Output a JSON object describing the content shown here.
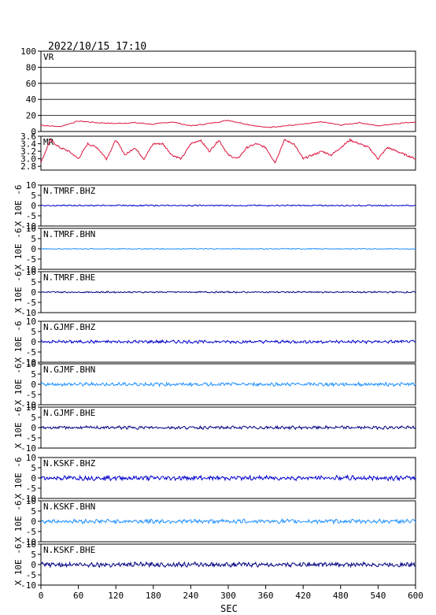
{
  "header": {
    "timestamp": "2022/10/15 17:10"
  },
  "colors": {
    "frame": "#000000",
    "grid": "#000000",
    "vr": "#dc143c",
    "mr": "#dc143c",
    "bhz": "#0000cd",
    "bhn": "#1e90ff",
    "bhe": "#000080"
  },
  "chart_data": [
    {
      "type": "line",
      "panel_label": "VR",
      "ylim": [
        0,
        100
      ],
      "yticks": [
        0,
        20,
        40,
        60,
        80,
        100
      ],
      "grid": true,
      "color": "#dc143c",
      "x": [
        0,
        30,
        60,
        90,
        120,
        150,
        180,
        210,
        240,
        270,
        300,
        330,
        360,
        390,
        420,
        450,
        480,
        510,
        540,
        570,
        600
      ],
      "y": [
        8,
        6,
        13,
        11,
        10,
        11,
        9,
        12,
        7,
        10,
        14,
        9,
        5,
        7,
        9,
        12,
        8,
        11,
        7,
        10,
        12
      ]
    },
    {
      "type": "line",
      "panel_label": "MR",
      "ylim": [
        2.7,
        3.6
      ],
      "yticks": [
        2.8,
        3.0,
        3.2,
        3.4,
        3.6
      ],
      "color": "#dc143c",
      "x": [
        0,
        15,
        30,
        45,
        60,
        75,
        90,
        105,
        120,
        135,
        150,
        165,
        180,
        195,
        210,
        225,
        240,
        255,
        270,
        285,
        300,
        315,
        330,
        345,
        360,
        375,
        390,
        405,
        420,
        435,
        450,
        465,
        480,
        495,
        510,
        525,
        540,
        555,
        570,
        585,
        600
      ],
      "y": [
        2.9,
        3.5,
        3.3,
        3.2,
        3.0,
        3.4,
        3.3,
        3.0,
        3.5,
        3.1,
        3.3,
        3.0,
        3.4,
        3.4,
        3.1,
        3.0,
        3.4,
        3.5,
        3.2,
        3.5,
        3.1,
        3.0,
        3.3,
        3.4,
        3.3,
        2.9,
        3.5,
        3.4,
        3.0,
        3.1,
        3.2,
        3.1,
        3.3,
        3.5,
        3.4,
        3.3,
        3.0,
        3.3,
        3.2,
        3.1,
        3.0
      ]
    },
    {
      "type": "line",
      "channel": "N.TMRF.BHZ",
      "ylabel": "X 10E -6",
      "ylim": [
        -10,
        10
      ],
      "yticks": [
        -10,
        -5,
        0,
        5,
        10
      ],
      "color": "#0000cd",
      "offset": 0,
      "amplitude": 0.25
    },
    {
      "type": "line",
      "channel": "N.TMRF.BHN",
      "ylabel": "X 10E -6",
      "ylim": [
        -10,
        10
      ],
      "yticks": [
        -10,
        -5,
        0,
        5,
        10
      ],
      "color": "#1e90ff",
      "offset": 0,
      "amplitude": 0.2
    },
    {
      "type": "line",
      "channel": "N.TMRF.BHE",
      "ylabel": "X 10E -6",
      "ylim": [
        -10,
        10
      ],
      "yticks": [
        -10,
        -5,
        0,
        5,
        10
      ],
      "color": "#000080",
      "offset": 0,
      "amplitude": 0.3
    },
    {
      "type": "line",
      "channel": "N.GJMF.BHZ",
      "ylabel": "X 10E -6",
      "ylim": [
        -10,
        10
      ],
      "yticks": [
        -10,
        -5,
        0,
        5,
        10
      ],
      "color": "#0000cd",
      "offset": 0,
      "amplitude": 0.6
    },
    {
      "type": "line",
      "channel": "N.GJMF.BHN",
      "ylabel": "X 10E -6",
      "ylim": [
        -10,
        10
      ],
      "yticks": [
        -10,
        -5,
        0,
        5,
        10
      ],
      "color": "#1e90ff",
      "offset": 0,
      "amplitude": 0.7
    },
    {
      "type": "line",
      "channel": "N.GJMF.BHE",
      "ylabel": "X 10E -6",
      "ylim": [
        -10,
        10
      ],
      "yticks": [
        -10,
        -5,
        0,
        5,
        10
      ],
      "color": "#000080",
      "offset": 0,
      "amplitude": 0.6
    },
    {
      "type": "line",
      "channel": "N.KSKF.BHZ",
      "ylabel": "X 10E -6",
      "ylim": [
        -10,
        10
      ],
      "yticks": [
        -10,
        -5,
        0,
        5,
        10
      ],
      "color": "#0000cd",
      "offset": 0,
      "amplitude": 0.9
    },
    {
      "type": "line",
      "channel": "N.KSKF.BHN",
      "ylabel": "X 10E -6",
      "ylim": [
        -10,
        10
      ],
      "yticks": [
        -10,
        -5,
        0,
        5,
        10
      ],
      "color": "#1e90ff",
      "offset": 0,
      "amplitude": 0.8
    },
    {
      "type": "line",
      "channel": "N.KSKF.BHE",
      "ylabel": "X 10E -6",
      "ylim": [
        -10,
        10
      ],
      "yticks": [
        -10,
        -5,
        0,
        5,
        10
      ],
      "color": "#000080",
      "offset": 0,
      "amplitude": 0.9
    }
  ],
  "xaxis": {
    "label": "SEC",
    "xlim": [
      0,
      600
    ],
    "ticks": [
      0,
      60,
      120,
      180,
      240,
      300,
      360,
      420,
      480,
      540,
      600
    ]
  }
}
